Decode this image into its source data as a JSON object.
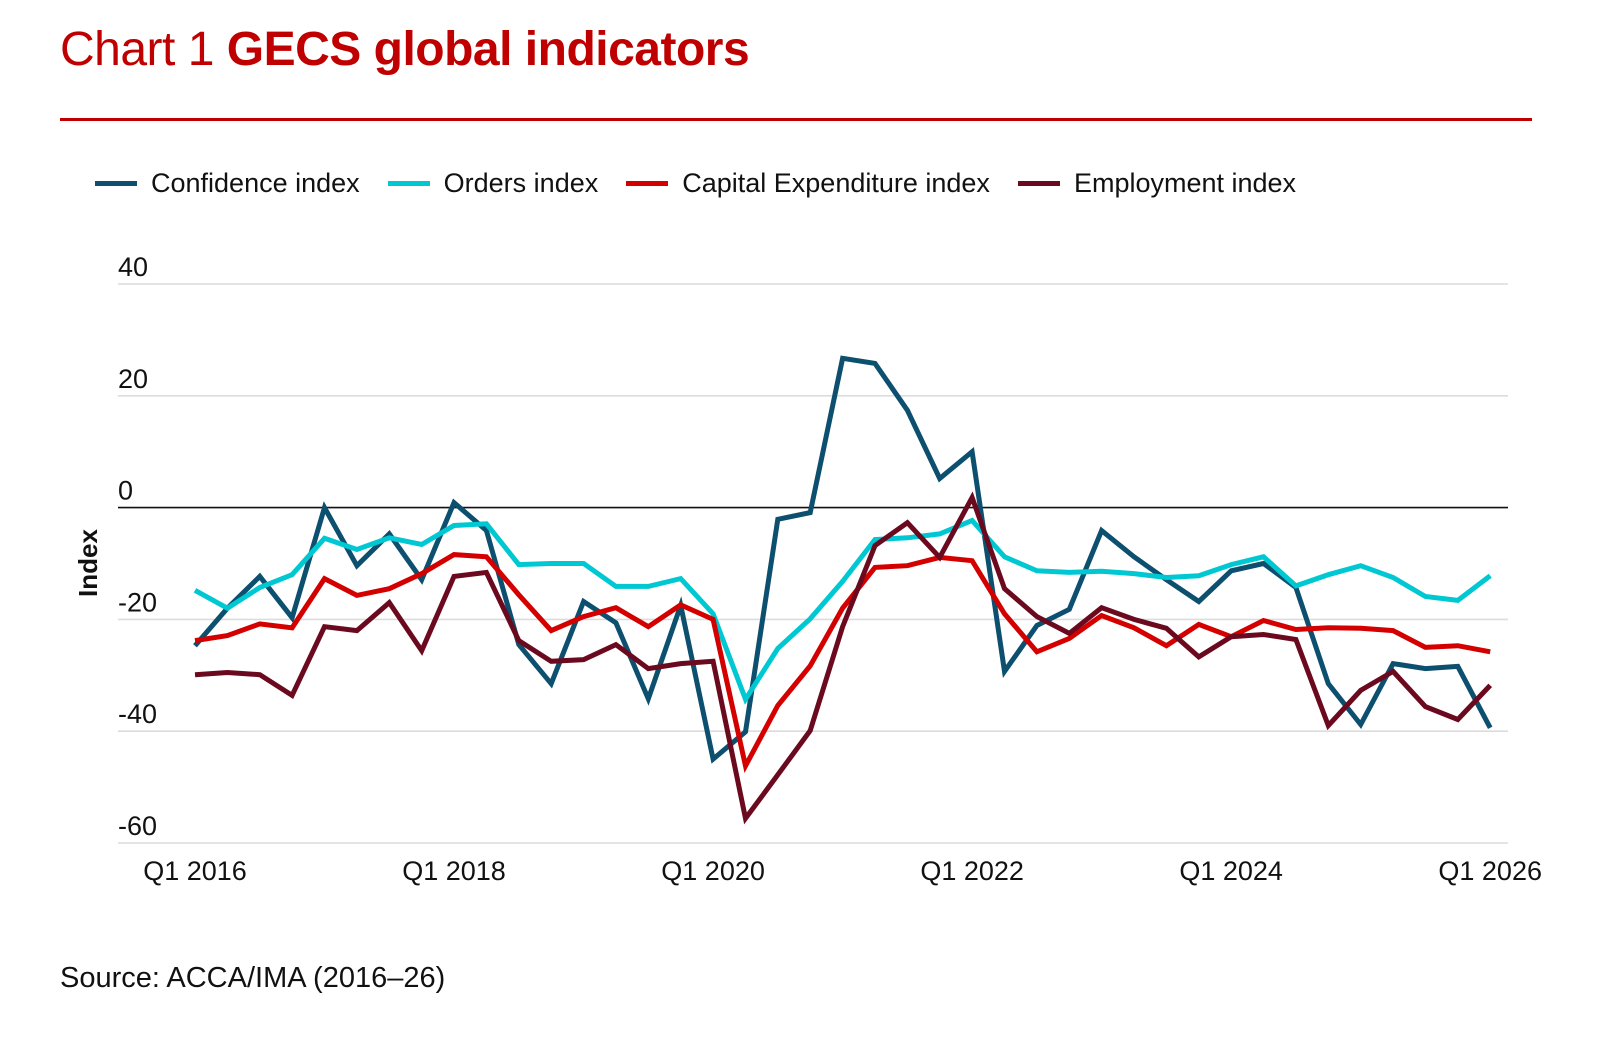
{
  "title": {
    "prefix": "Chart 1",
    "main": "GECS global indicators"
  },
  "source": "Source: ACCA/IMA (2016–26)",
  "chart_data": {
    "type": "line",
    "title": "Chart 1 GECS global indicators",
    "ylabel": "Index",
    "xlabel": "",
    "ylim": [
      -60,
      40
    ],
    "yticks": [
      40,
      20,
      0,
      -20,
      -40,
      -60
    ],
    "grid": true,
    "legend": "top",
    "x_tick_labels": [
      "Q1 2016",
      "Q1 2018",
      "Q1 2020",
      "Q1 2022",
      "Q1 2024",
      "Q1 2026"
    ],
    "x": [
      "Q1 2016",
      "Q2 2016",
      "Q3 2016",
      "Q4 2016",
      "Q1 2017",
      "Q2 2017",
      "Q3 2017",
      "Q4 2017",
      "Q1 2018",
      "Q2 2018",
      "Q3 2018",
      "Q4 2018",
      "Q1 2019",
      "Q2 2019",
      "Q3 2019",
      "Q4 2019",
      "Q1 2020",
      "Q2 2020",
      "Q3 2020",
      "Q4 2020",
      "Q1 2021",
      "Q2 2021",
      "Q3 2021",
      "Q4 2021",
      "Q1 2022",
      "Q2 2022",
      "Q3 2022",
      "Q4 2022",
      "Q1 2023",
      "Q2 2023",
      "Q3 2023",
      "Q4 2023",
      "Q1 2024",
      "Q2 2024",
      "Q3 2024",
      "Q4 2024",
      "Q1 2025",
      "Q2 2025",
      "Q3 2025",
      "Q4 2025",
      "Q1 2026"
    ],
    "series": [
      {
        "name": "Confidence index",
        "color": "#0d4f6e",
        "values": [
          -24.7,
          -18,
          -12.3,
          -19.7,
          0,
          -10.4,
          -4.7,
          -12.9,
          0.9,
          -4.1,
          -24.5,
          -31.5,
          -16.8,
          -20.6,
          -34.2,
          -17.5,
          -45,
          -40.1,
          -2.1,
          -0.9,
          26.7,
          25.8,
          17.4,
          5.2,
          10,
          -29.3,
          -21.1,
          -18.2,
          -4.1,
          -8.8,
          -12.9,
          -16.8,
          -11.3,
          -10,
          -14.3,
          -31.5,
          -38.8,
          -27.9,
          -28.8,
          -28.4,
          -39.4
        ]
      },
      {
        "name": "Orders index",
        "color": "#00c8d2",
        "values": [
          -14.8,
          -18,
          -14.3,
          -12,
          -5.5,
          -7.5,
          -5.4,
          -6.6,
          -3.2,
          -2.9,
          -10.2,
          -10,
          -10,
          -14.1,
          -14.1,
          -12.7,
          -19,
          -34.3,
          -25.2,
          -19.9,
          -13.2,
          -5.7,
          -5.4,
          -4.7,
          -2.3,
          -8.8,
          -11.3,
          -11.6,
          -11.4,
          -11.8,
          -12.5,
          -12.2,
          -10.2,
          -8.8,
          -14,
          -12,
          -10.4,
          -12.5,
          -15.9,
          -16.6,
          -12.2
        ]
      },
      {
        "name": "Capital Expenditure index",
        "color": "#d40000",
        "values": [
          -23.8,
          -22.9,
          -20.8,
          -21.5,
          -12.7,
          -15.7,
          -14.5,
          -11.8,
          -8.4,
          -8.8,
          -15.6,
          -22,
          -19.5,
          -17.9,
          -21.3,
          -17.4,
          -20,
          -46.2,
          -35.4,
          -28.3,
          -18,
          -10.7,
          -10.4,
          -8.9,
          -9.5,
          -19,
          -25.8,
          -23.4,
          -19.3,
          -21.5,
          -24.7,
          -20.9,
          -23.1,
          -20.2,
          -21.8,
          -21.5,
          -21.6,
          -22,
          -25,
          -24.7,
          -25.8
        ]
      },
      {
        "name": "Employment index",
        "color": "#6b0a1e",
        "values": [
          -29.9,
          -29.5,
          -29.9,
          -33.6,
          -21.3,
          -22,
          -17,
          -25.6,
          -12.3,
          -11.6,
          -23.8,
          -27.5,
          -27.2,
          -24.5,
          -28.8,
          -27.9,
          -27.5,
          -55.6,
          -47.8,
          -39.9,
          -21.3,
          -6.8,
          -2.7,
          -8.9,
          1.8,
          -14.5,
          -19.5,
          -22.5,
          -17.9,
          -20,
          -21.6,
          -26.7,
          -23.1,
          -22.7,
          -23.6,
          -39,
          -32.7,
          -29.3,
          -35.6,
          -37.9,
          -31.8
        ]
      }
    ]
  }
}
